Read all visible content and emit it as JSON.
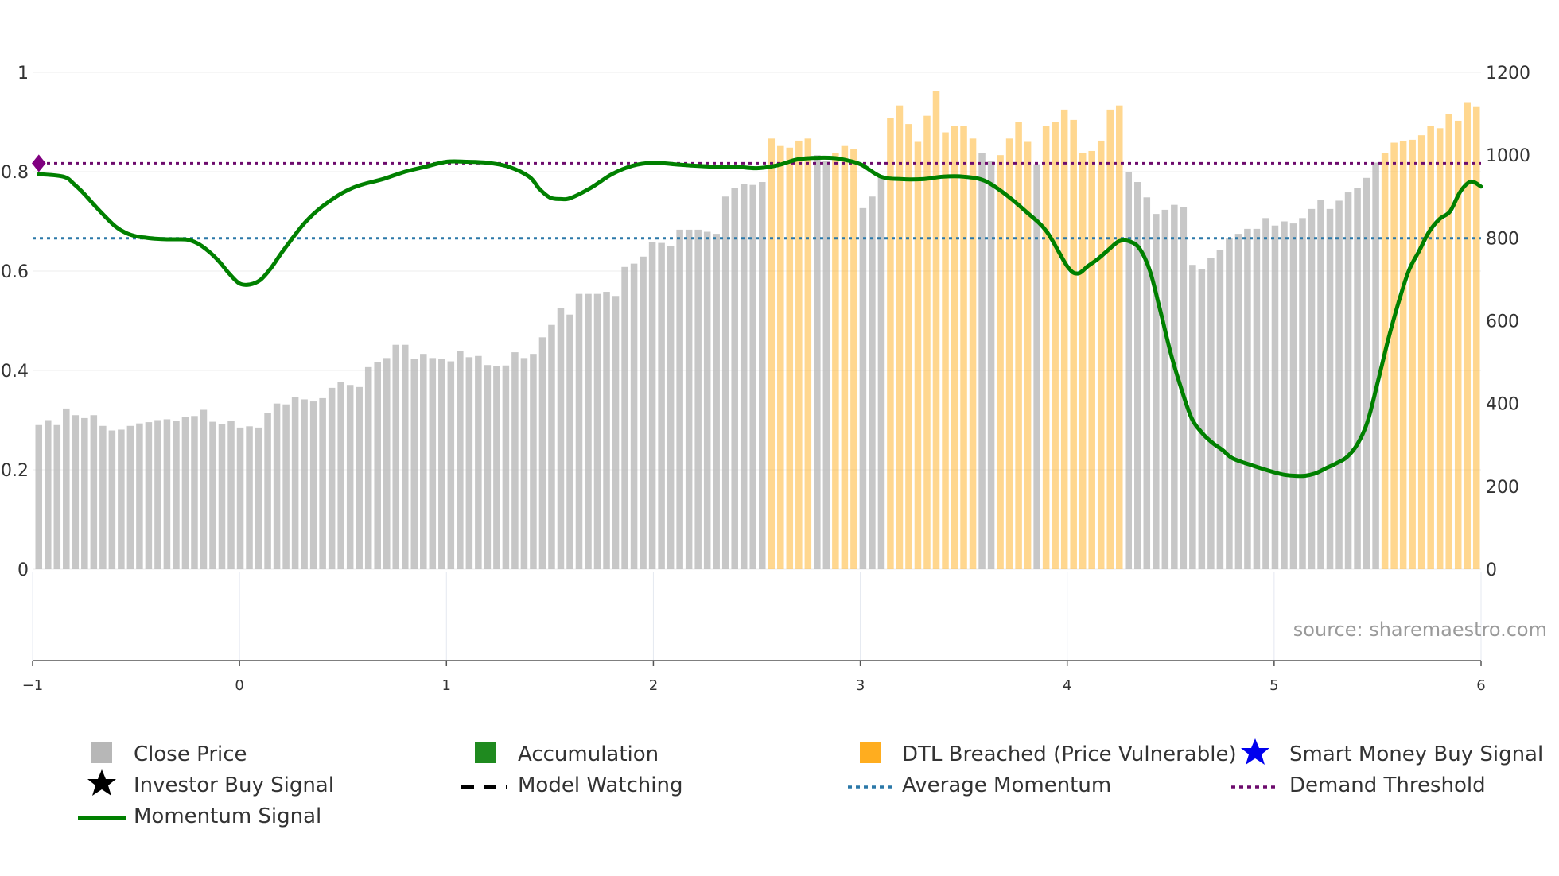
{
  "chart_data": {
    "type": "bar",
    "title": "",
    "left_axis": {
      "min": 0,
      "max": 1,
      "ticks": [
        0,
        0.2,
        0.4,
        0.6,
        0.8,
        1
      ],
      "tick_labels": [
        "0",
        "0.2",
        "0.4",
        "0.6",
        "0.8",
        "1"
      ]
    },
    "right_axis": {
      "min": 0,
      "max": 1200,
      "ticks": [
        0,
        200,
        400,
        600,
        800,
        1000,
        1200
      ],
      "tick_labels": [
        "0",
        "200",
        "400",
        "600",
        "800",
        "1000",
        "1200"
      ]
    },
    "x_axis": {
      "min": -1,
      "max": 6,
      "ticks": [
        -1,
        0,
        1,
        2,
        3,
        4,
        5,
        6
      ],
      "tick_labels": [
        "−1",
        "0",
        "1",
        "2",
        "3",
        "4",
        "5",
        "6"
      ]
    },
    "series": [
      {
        "name": "Close Price",
        "type": "bar",
        "axis": "right",
        "values": [
          348,
          360,
          348,
          388,
          372,
          365,
          372,
          346,
          335,
          337,
          346,
          352,
          355,
          360,
          362,
          358,
          368,
          370,
          385,
          356,
          350,
          358,
          342,
          345,
          342,
          378,
          400,
          398,
          415,
          410,
          405,
          413,
          438,
          452,
          445,
          440,
          488,
          500,
          510,
          542,
          542,
          508,
          520,
          510,
          508,
          502,
          528,
          512,
          515,
          493,
          490,
          492,
          524,
          510,
          520,
          560,
          590,
          630,
          615,
          665,
          665,
          665,
          670,
          660,
          730,
          738,
          755,
          790,
          788,
          780,
          820,
          820,
          820,
          815,
          810,
          900,
          920,
          930,
          928,
          935,
          1040,
          1022,
          1018,
          1035,
          1040,
          1000,
          985,
          1005,
          1022,
          1015,
          872,
          900,
          950,
          1090,
          1120,
          1075,
          1032,
          1095,
          1155,
          1055,
          1070,
          1070,
          1040,
          1005,
          985,
          1000,
          1040,
          1080,
          1032,
          978,
          1070,
          1080,
          1110,
          1085,
          1005,
          1010,
          1035,
          1110,
          1120,
          960,
          935,
          898,
          858,
          868,
          880,
          875,
          735,
          725,
          752,
          770,
          800,
          810,
          822,
          822,
          848,
          830,
          840,
          835,
          848,
          870,
          892,
          870,
          890,
          910,
          920,
          945,
          982,
          1005,
          1030,
          1033,
          1037,
          1048,
          1070,
          1065,
          1100,
          1083,
          1128,
          1118
        ],
        "colors": [
          "g",
          "g",
          "g",
          "g",
          "g",
          "g",
          "g",
          "g",
          "g",
          "g",
          "g",
          "g",
          "g",
          "g",
          "g",
          "g",
          "g",
          "g",
          "g",
          "g",
          "g",
          "g",
          "g",
          "g",
          "g",
          "g",
          "g",
          "g",
          "g",
          "g",
          "g",
          "g",
          "g",
          "g",
          "g",
          "g",
          "g",
          "g",
          "g",
          "g",
          "g",
          "g",
          "g",
          "g",
          "g",
          "g",
          "g",
          "g",
          "g",
          "g",
          "g",
          "g",
          "g",
          "g",
          "g",
          "g",
          "g",
          "g",
          "g",
          "g",
          "g",
          "g",
          "g",
          "g",
          "g",
          "g",
          "g",
          "g",
          "g",
          "g",
          "g",
          "g",
          "g",
          "g",
          "g",
          "g",
          "g",
          "g",
          "g",
          "g",
          "o",
          "o",
          "o",
          "o",
          "o",
          "g",
          "g",
          "o",
          "o",
          "o",
          "g",
          "g",
          "g",
          "o",
          "o",
          "o",
          "o",
          "o",
          "o",
          "o",
          "o",
          "o",
          "o",
          "g",
          "g",
          "o",
          "o",
          "o",
          "o",
          "g",
          "o",
          "o",
          "o",
          "o",
          "o",
          "o",
          "o",
          "o",
          "o",
          "g",
          "g",
          "g",
          "g",
          "g",
          "g",
          "g",
          "g",
          "g",
          "g",
          "g",
          "g",
          "g",
          "g",
          "g",
          "g",
          "g",
          "g",
          "g",
          "g",
          "g",
          "g",
          "g",
          "g",
          "g",
          "g",
          "g",
          "g",
          "o",
          "o",
          "o",
          "o",
          "o",
          "o",
          "o",
          "o",
          "o",
          "o",
          "o"
        ]
      },
      {
        "name": "Momentum Signal",
        "type": "line",
        "axis": "left",
        "x": [
          -0.97,
          -0.85,
          -0.8,
          -0.75,
          -0.7,
          -0.65,
          -0.6,
          -0.55,
          -0.5,
          -0.45,
          -0.4,
          -0.35,
          -0.3,
          -0.25,
          -0.2,
          -0.15,
          -0.1,
          -0.05,
          0,
          0.05,
          0.1,
          0.15,
          0.2,
          0.25,
          0.3,
          0.35,
          0.4,
          0.45,
          0.5,
          0.55,
          0.6,
          0.7,
          0.8,
          0.9,
          1,
          1.1,
          1.2,
          1.3,
          1.4,
          1.45,
          1.5,
          1.55,
          1.6,
          1.7,
          1.8,
          1.9,
          2,
          2.1,
          2.2,
          2.3,
          2.4,
          2.5,
          2.6,
          2.7,
          2.8,
          2.85,
          2.9,
          3,
          3.1,
          3.2,
          3.3,
          3.4,
          3.5,
          3.6,
          3.7,
          3.8,
          3.9,
          4,
          4.05,
          4.1,
          4.15,
          4.2,
          4.25,
          4.3,
          4.35,
          4.4,
          4.45,
          4.5,
          4.55,
          4.6,
          4.65,
          4.7,
          4.75,
          4.8,
          4.9,
          5,
          5.05,
          5.1,
          5.15,
          5.2,
          5.25,
          5.3,
          5.35,
          5.4,
          5.45,
          5.5,
          5.55,
          5.6,
          5.65,
          5.7,
          5.75,
          5.8,
          5.85,
          5.9,
          5.95,
          6
        ],
        "values": [
          0.795,
          0.79,
          0.775,
          0.755,
          0.732,
          0.71,
          0.69,
          0.677,
          0.67,
          0.667,
          0.665,
          0.664,
          0.664,
          0.663,
          0.655,
          0.64,
          0.62,
          0.595,
          0.575,
          0.573,
          0.582,
          0.605,
          0.635,
          0.663,
          0.69,
          0.712,
          0.73,
          0.745,
          0.758,
          0.768,
          0.775,
          0.786,
          0.8,
          0.81,
          0.82,
          0.82,
          0.818,
          0.81,
          0.79,
          0.765,
          0.748,
          0.745,
          0.747,
          0.768,
          0.795,
          0.812,
          0.818,
          0.815,
          0.812,
          0.81,
          0.81,
          0.807,
          0.813,
          0.825,
          0.828,
          0.828,
          0.826,
          0.815,
          0.79,
          0.785,
          0.785,
          0.79,
          0.79,
          0.782,
          0.755,
          0.72,
          0.68,
          0.61,
          0.595,
          0.61,
          0.625,
          0.643,
          0.66,
          0.66,
          0.645,
          0.6,
          0.52,
          0.435,
          0.365,
          0.305,
          0.275,
          0.255,
          0.24,
          0.223,
          0.208,
          0.195,
          0.19,
          0.188,
          0.188,
          0.193,
          0.203,
          0.213,
          0.225,
          0.25,
          0.295,
          0.375,
          0.46,
          0.535,
          0.6,
          0.64,
          0.68,
          0.705,
          0.72,
          0.76,
          0.78,
          0.77
        ]
      },
      {
        "name": "Demand Threshold",
        "type": "hline",
        "axis": "left",
        "value": 0.817,
        "color": "#6d0b6d"
      },
      {
        "name": "Average Momentum",
        "type": "hline",
        "axis": "left",
        "value": 0.666,
        "color": "#2b78a8"
      }
    ],
    "markers": [
      {
        "name": "Demand Threshold marker",
        "x": -0.97,
        "y": 0.817,
        "shape": "diamond",
        "color": "#800080"
      }
    ],
    "legend_placement": "bottom",
    "source_label": "source: sharemaestro.com"
  },
  "colors": {
    "grey_bar": "#b7b7b7",
    "orange_bar": "#ffb733",
    "momentum": "#008000",
    "demand": "#6d0b6d",
    "average": "#2b78a8"
  },
  "legend": [
    {
      "label": "Close Price",
      "icon": "grey-square-icon"
    },
    {
      "label": "Accumulation",
      "icon": "green-square-icon"
    },
    {
      "label": "DTL Breached (Price Vulnerable)",
      "icon": "orange-square-icon"
    },
    {
      "label": "Smart Money Buy Signal",
      "icon": "blue-star-icon"
    },
    {
      "label": "Investor Buy Signal",
      "icon": "black-star-icon"
    },
    {
      "label": "Model Watching",
      "icon": "dashed-line-icon"
    },
    {
      "label": "Average Momentum",
      "icon": "dotted-blue-line-icon"
    },
    {
      "label": "Demand Threshold",
      "icon": "dotted-purple-line-icon"
    },
    {
      "label": "Momentum Signal",
      "icon": "green-line-icon"
    }
  ]
}
